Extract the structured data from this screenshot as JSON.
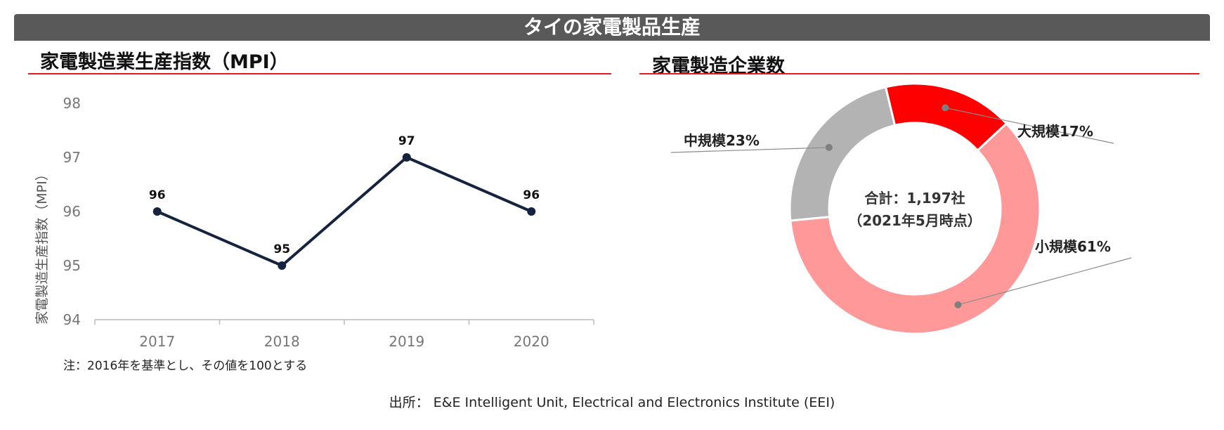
{
  "header": {
    "title": "タイの家電製品生産"
  },
  "charts_titles": {
    "left": "家電製造業生産指数（MPI）",
    "right": "家電製造企業数"
  },
  "chart_data": [
    {
      "type": "line",
      "title": "家電製造業生産指数（MPI）",
      "xlabel": "",
      "ylabel": "家電製造生産指数（MPI）",
      "categories": [
        "2017",
        "2018",
        "2019",
        "2020"
      ],
      "series": [
        {
          "values": [
            96,
            95,
            97,
            96
          ]
        }
      ],
      "data_labels": [
        "96",
        "95",
        "97",
        "96"
      ],
      "ylim": [
        94,
        98
      ],
      "yticks": [
        "94",
        "95",
        "96",
        "97",
        "98"
      ],
      "grid": false,
      "line_color": "#15233f"
    },
    {
      "type": "pie",
      "donut": true,
      "title": "家電製造企業数",
      "slices": [
        {
          "label": "大規模17%",
          "value": 17,
          "color": "#ff0000"
        },
        {
          "label": "小規模61%",
          "value": 61,
          "color": "#ff9999"
        },
        {
          "label": "中規模23%",
          "value": 23,
          "color": "#b3b3b3"
        }
      ],
      "center_text": [
        "合計：1,197社",
        "（2021年5月時点）"
      ]
    }
  ],
  "note": "注：2016年を基準とし、その値を100とする",
  "source": "出所： E&E Intelligent Unit, Electrical and Electronics Institute (EEI)"
}
